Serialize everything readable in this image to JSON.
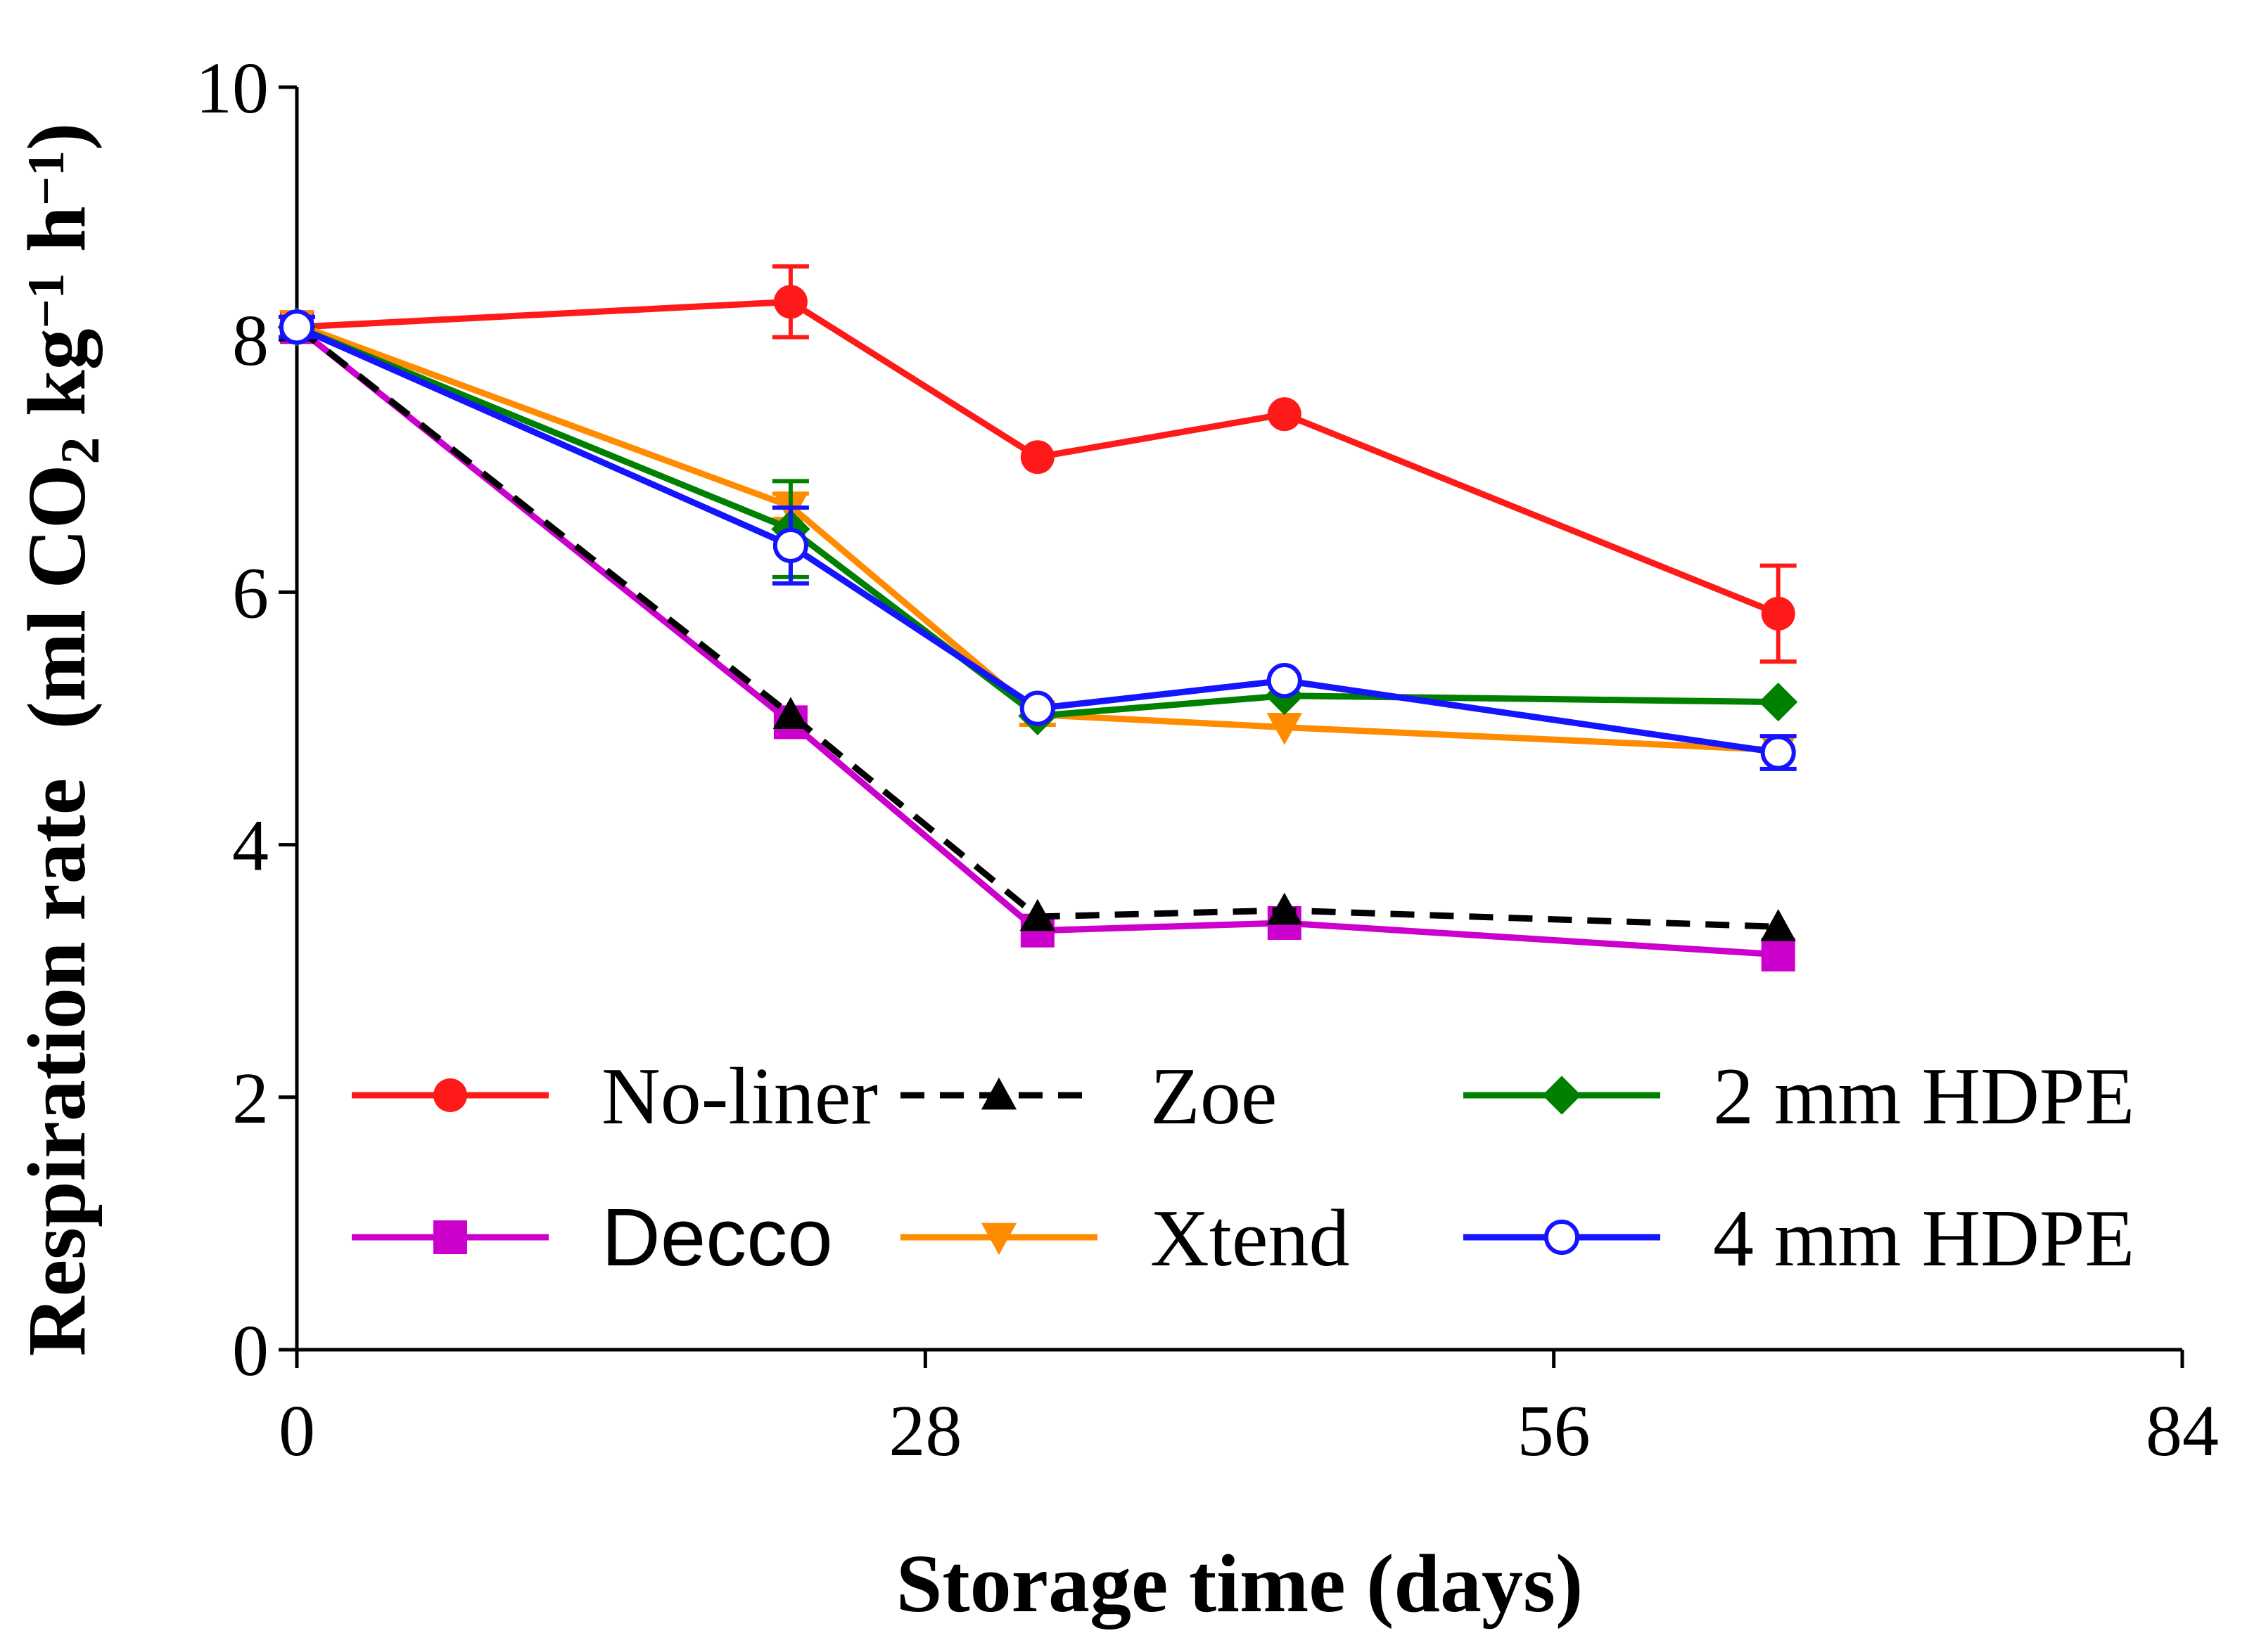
{
  "chart_data": {
    "type": "line",
    "title": "",
    "xlabel": "Storage time (days)",
    "ylabel": {
      "main": "Respiration rate",
      "unit_open": "(ml CO",
      "unit_sub": "2",
      "unit_kg": " kg",
      "unit_sup1": "−1",
      "unit_h": " h",
      "unit_sup2": "−1",
      "unit_close": ")"
    },
    "xlim": [
      0,
      84
    ],
    "ylim": [
      0,
      10
    ],
    "xticks": [
      0,
      28,
      56,
      84
    ],
    "yticks": [
      0,
      2,
      4,
      6,
      8,
      10
    ],
    "x": [
      0,
      22,
      33,
      44,
      66
    ],
    "grid": false,
    "legend_position": "bottom-right",
    "series": [
      {
        "name": "No-liner",
        "color": "#ff1a1a",
        "marker": "circle",
        "dash": false,
        "values": [
          8.1,
          8.3,
          7.07,
          7.41,
          5.83
        ],
        "errors": [
          0.08,
          0.28,
          0.06,
          0.06,
          0.38
        ]
      },
      {
        "name": "Decco",
        "color": "#cc00cc",
        "marker": "square",
        "dash": false,
        "values": [
          8.1,
          4.97,
          3.32,
          3.38,
          3.13
        ],
        "errors": [
          0.05,
          0.05,
          0.05,
          0.05,
          0.05
        ]
      },
      {
        "name": "Zoe",
        "color": "#000000",
        "marker": "triangle-up",
        "dash": true,
        "values": [
          8.1,
          5.03,
          3.43,
          3.48,
          3.35
        ],
        "errors": [
          0.05,
          0.05,
          0.05,
          0.05,
          0.05
        ]
      },
      {
        "name": "Xtend",
        "color": "#ff8c00",
        "marker": "triangle-down",
        "dash": false,
        "values": [
          8.12,
          6.68,
          5.03,
          4.93,
          4.75
        ],
        "errors": [
          0.05,
          0.1,
          0.08,
          0.05,
          0.05
        ]
      },
      {
        "name": "2 mm HDPE",
        "color": "#008000",
        "marker": "diamond",
        "dash": false,
        "values": [
          8.1,
          6.5,
          5.02,
          5.18,
          5.13
        ],
        "errors": [
          0.05,
          0.38,
          0.05,
          0.05,
          0.05
        ]
      },
      {
        "name": "4 mm HDPE",
        "color": "#1414ff",
        "marker": "circle-open",
        "dash": false,
        "values": [
          8.1,
          6.37,
          5.08,
          5.3,
          4.73
        ],
        "errors": [
          0.08,
          0.3,
          0.05,
          0.05,
          0.13
        ]
      }
    ]
  }
}
